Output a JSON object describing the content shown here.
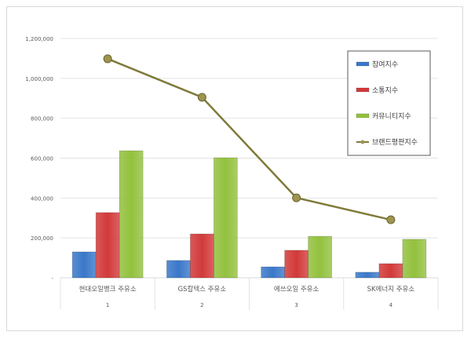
{
  "chart_data": {
    "type": "bar",
    "title": "",
    "xlabel": "",
    "ylabel": "",
    "categories": [
      "현대오일뱅크 주유소",
      "GS칼텍스 주유소",
      "에쓰오일 주유소",
      "SK에너지 주유소"
    ],
    "category_numbers": [
      "1",
      "2",
      "3",
      "4"
    ],
    "ylim": [
      0,
      1200000
    ],
    "yticks": [
      0,
      200000,
      400000,
      600000,
      800000,
      1000000,
      1200000
    ],
    "ytick_labels": [
      "-",
      "200,000",
      "400,000",
      "600,000",
      "800,000",
      "1,000,000",
      "1,200,000"
    ],
    "grid": true,
    "legend_position": "top-right",
    "series": [
      {
        "name": "참여지수",
        "kind": "bar",
        "color": "#3a78c9",
        "values": [
          130000,
          87000,
          55000,
          28000
        ]
      },
      {
        "name": "소통지수",
        "kind": "bar",
        "color": "#d23a3a",
        "values": [
          327000,
          220000,
          138000,
          71000
        ]
      },
      {
        "name": "커뮤니티지수",
        "kind": "bar",
        "color": "#93c13e",
        "values": [
          637000,
          602000,
          208000,
          193000
        ]
      },
      {
        "name": "브랜드평판지수",
        "kind": "line",
        "color": "#7f7a3a",
        "values": [
          1098000,
          905000,
          401000,
          291000
        ]
      }
    ]
  }
}
